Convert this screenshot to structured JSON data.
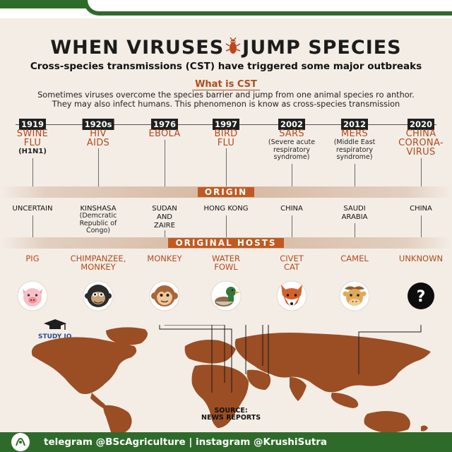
{
  "header": {
    "title_left": "WHEN VIRUSES",
    "title_right": "JUMP SPECIES",
    "subtitle": "Cross-species transmissions (CST) have triggered some major outbreaks"
  },
  "cst": {
    "heading": "What is CST",
    "body_line1": "Sometimes viruses overcome the species barrier and jump from one animal species ro anthor.",
    "body_line2": "They may also infect humans. This phenomenon is know as cross-species transmission"
  },
  "outbreaks": [
    {
      "year": "1919",
      "virus_line1": "SWINE",
      "virus_line2": "FLU",
      "detail": "(H1N1)",
      "origin": "UNCERTAIN",
      "host": "PIG",
      "animal": "pig-icon"
    },
    {
      "year": "1920s",
      "virus_line1": "HIV",
      "virus_line2": "AIDS",
      "origin": "KINSHASA",
      "origin_detail_1": "(Demcratic",
      "origin_detail_2": "Republic of",
      "origin_detail_3": "Congo)",
      "host_line1": "CHIMPANZEE,",
      "host_line2": "MONKEY",
      "animal": "chimpanzee-icon"
    },
    {
      "year": "1976",
      "virus_line1": "EBOLA",
      "origin_line1": "SUDAN",
      "origin_line2": "AND",
      "origin_line3": "ZAIRE",
      "host": "MONKEY",
      "animal": "monkey-icon"
    },
    {
      "year": "1997",
      "virus_line1": "BIRD",
      "virus_line2": "FLU",
      "origin": "HONG KONG",
      "host_line1": "WATER",
      "host_line2": "FOWL",
      "animal": "duck-icon"
    },
    {
      "year": "2002",
      "virus_line1": "SARS",
      "detail_1": "(Severe acute",
      "detail_2": "respiratory",
      "detail_3": "syndrome)",
      "origin": "CHINA",
      "host_line1": "CIVET",
      "host_line2": "CAT",
      "animal": "civet-icon"
    },
    {
      "year": "2012",
      "virus_line1": "MERS",
      "detail_1": "(Middle East",
      "detail_2": "respiratory",
      "detail_3": "syndrome)",
      "origin_line1": "SAUDI",
      "origin_line2": "ARABIA",
      "host": "CAMEL",
      "animal": "camel-icon"
    },
    {
      "year": "2020",
      "virus_line1": "CHINA",
      "virus_line2": "CORONA-",
      "virus_line3": "VIRUS",
      "origin": "CHINA",
      "host": "UNKNOWN",
      "animal": "question-icon",
      "unknown_mark": "?"
    }
  ],
  "bands": {
    "origin": "ORIGIN",
    "hosts": "ORIGINAL HOSTS"
  },
  "source_line1": "SOURCE:",
  "source_line2": "NEWS REPORTS",
  "studyiq": "STUDY IQ",
  "footer": "telegram @BScAgriculture | instagram @KrushiSutra",
  "colors": {
    "accent": "#b34a1a",
    "green": "#2e6b2b",
    "map": "#9b4d24",
    "background": "#f4ede6"
  }
}
